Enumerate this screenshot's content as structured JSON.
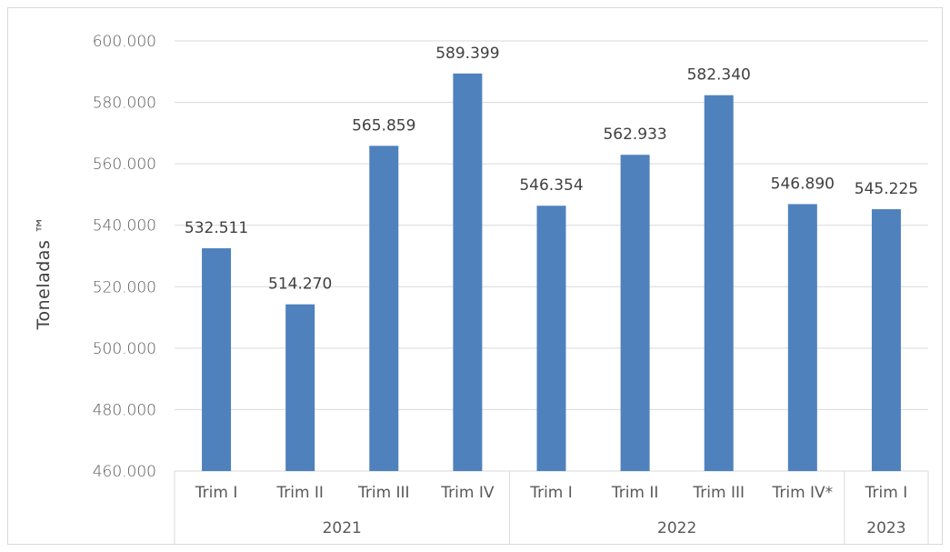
{
  "chart_data": {
    "type": "bar",
    "title": "",
    "ylabel": "Toneladas ™",
    "xlabel": "",
    "ylim": [
      460000,
      600000
    ],
    "yticks": [
      460000,
      480000,
      500000,
      520000,
      540000,
      560000,
      580000,
      600000
    ],
    "ytick_labels": [
      "460.000",
      "480.000",
      "500.000",
      "520.000",
      "540.000",
      "560.000",
      "580.000",
      "600.000"
    ],
    "categories": [
      "Trim I",
      "Trim II",
      "Trim III",
      "Trim IV",
      "Trim I",
      "Trim II",
      "Trim III",
      "Trim IV*",
      "Trim I"
    ],
    "groups": [
      {
        "label": "2021",
        "count": 4
      },
      {
        "label": "2022",
        "count": 4
      },
      {
        "label": "2023",
        "count": 1
      }
    ],
    "values": [
      532511,
      514270,
      565859,
      589399,
      546354,
      562933,
      582340,
      546890,
      545225
    ],
    "data_labels": [
      "532.511",
      "514.270",
      "565.859",
      "589.399",
      "546.354",
      "562.933",
      "582.340",
      "546.890",
      "545.225"
    ],
    "grid": true,
    "legend": "none",
    "colors": {
      "bar": "#4f81bd",
      "grid": "#d9d9d9",
      "axis_text": "#595959"
    }
  }
}
